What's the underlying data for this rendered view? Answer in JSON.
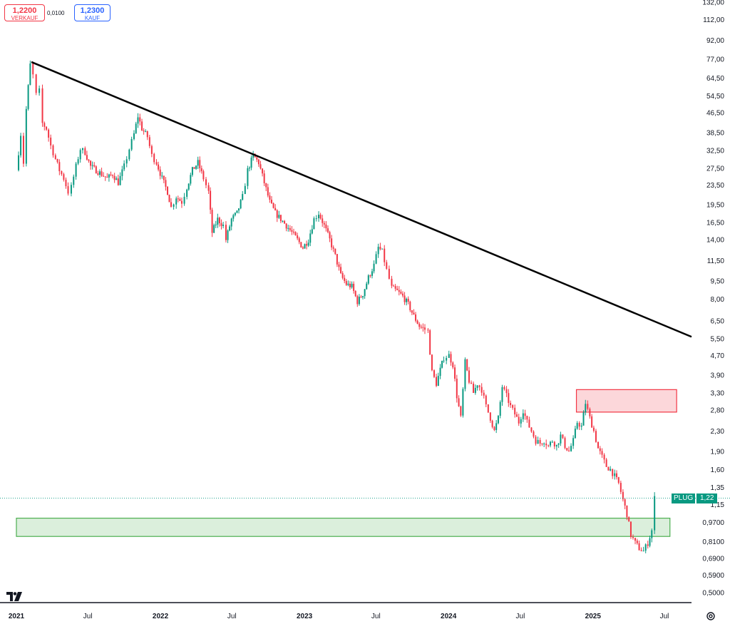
{
  "quote": {
    "sell_price": "1,2200",
    "sell_label": "VERKAUF",
    "spread": "0,0100",
    "buy_price": "1,2300",
    "buy_label": "KAUF"
  },
  "ticker": "PLUG",
  "last_price": "1,22",
  "colors": {
    "up": "#089981",
    "down": "#f23645",
    "trendline": "#000000",
    "resistance_zone": "#f23645",
    "support_zone": "#4caf50",
    "price_line": "#089981"
  },
  "icons": {
    "logo": "tradingview-logo-icon",
    "settings": "gear-icon"
  },
  "chart_data": {
    "type": "line",
    "title": "",
    "xlabel": "",
    "ylabel": "",
    "scale": "log",
    "x_range": [
      "2021-01-01",
      "2025-08-01"
    ],
    "y_range": [
      0.45,
      145
    ],
    "y_ticks": [
      "132,00",
      "112,00",
      "92,00",
      "77,00",
      "64,50",
      "54,50",
      "46,50",
      "38,50",
      "32,50",
      "27,50",
      "23,50",
      "19,50",
      "16,50",
      "14,00",
      "11,50",
      "9,50",
      "8,00",
      "6,50",
      "5,50",
      "4,70",
      "3,90",
      "3,30",
      "2,80",
      "2,30",
      "1,90",
      "1,60",
      "1,35",
      "1,15",
      "0,9700",
      "0,8100",
      "0,6900",
      "0,5900",
      "0,5000"
    ],
    "y_tick_values": [
      132,
      112,
      92,
      77,
      64.5,
      54.5,
      46.5,
      38.5,
      32.5,
      27.5,
      23.5,
      19.5,
      16.5,
      14,
      11.5,
      9.5,
      8,
      6.5,
      5.5,
      4.7,
      3.9,
      3.3,
      2.8,
      2.3,
      1.9,
      1.6,
      1.35,
      1.15,
      0.97,
      0.81,
      0.69,
      0.59,
      0.5
    ],
    "x_ticks": [
      {
        "label": "2021",
        "date": "2021-01-01",
        "year": true
      },
      {
        "label": "Jul",
        "date": "2021-07-01",
        "year": false
      },
      {
        "label": "2022",
        "date": "2022-01-01",
        "year": true
      },
      {
        "label": "Jul",
        "date": "2022-07-01",
        "year": false
      },
      {
        "label": "2023",
        "date": "2023-01-01",
        "year": true
      },
      {
        "label": "Jul",
        "date": "2023-07-01",
        "year": false
      },
      {
        "label": "2024",
        "date": "2024-01-01",
        "year": true
      },
      {
        "label": "Jul",
        "date": "2024-07-01",
        "year": false
      },
      {
        "label": "2025",
        "date": "2025-01-01",
        "year": true
      },
      {
        "label": "Jul",
        "date": "2025-07-01",
        "year": false
      }
    ],
    "series": [
      {
        "values": [
          [
            "2021-01-01",
            27
          ],
          [
            "2021-01-12",
            38
          ],
          [
            "2021-01-19",
            29
          ],
          [
            "2021-01-26",
            48
          ],
          [
            "2021-02-05",
            73
          ],
          [
            "2021-02-12",
            66
          ],
          [
            "2021-02-20",
            55
          ],
          [
            "2021-02-28",
            57
          ],
          [
            "2021-03-08",
            42
          ],
          [
            "2021-03-18",
            40
          ],
          [
            "2021-03-29",
            34
          ],
          [
            "2021-04-10",
            30
          ],
          [
            "2021-04-20",
            27
          ],
          [
            "2021-05-01",
            25
          ],
          [
            "2021-05-12",
            22
          ],
          [
            "2021-05-20",
            23
          ],
          [
            "2021-06-01",
            28
          ],
          [
            "2021-06-12",
            33
          ],
          [
            "2021-06-24",
            32
          ],
          [
            "2021-07-08",
            28
          ],
          [
            "2021-07-22",
            27
          ],
          [
            "2021-08-05",
            26
          ],
          [
            "2021-08-19",
            25
          ],
          [
            "2021-09-02",
            26
          ],
          [
            "2021-09-16",
            24
          ],
          [
            "2021-10-01",
            28
          ],
          [
            "2021-10-14",
            33
          ],
          [
            "2021-10-26",
            38
          ],
          [
            "2021-11-05",
            45
          ],
          [
            "2021-11-15",
            40
          ],
          [
            "2021-11-29",
            37
          ],
          [
            "2021-12-10",
            31
          ],
          [
            "2021-12-22",
            29
          ],
          [
            "2022-01-05",
            25
          ],
          [
            "2022-01-19",
            22
          ],
          [
            "2022-01-28",
            19
          ],
          [
            "2022-02-10",
            21
          ],
          [
            "2022-02-24",
            20
          ],
          [
            "2022-03-09",
            23
          ],
          [
            "2022-03-23",
            27
          ],
          [
            "2022-04-06",
            29
          ],
          [
            "2022-04-20",
            25
          ],
          [
            "2022-05-03",
            22
          ],
          [
            "2022-05-12",
            15
          ],
          [
            "2022-05-26",
            17
          ],
          [
            "2022-06-09",
            16
          ],
          [
            "2022-06-16",
            14
          ],
          [
            "2022-06-30",
            17
          ],
          [
            "2022-07-14",
            18
          ],
          [
            "2022-07-28",
            21
          ],
          [
            "2022-08-10",
            27
          ],
          [
            "2022-08-24",
            31
          ],
          [
            "2022-09-07",
            29
          ],
          [
            "2022-09-21",
            24
          ],
          [
            "2022-10-05",
            20
          ],
          [
            "2022-10-19",
            18
          ],
          [
            "2022-11-02",
            17
          ],
          [
            "2022-11-16",
            16
          ],
          [
            "2022-11-30",
            15
          ],
          [
            "2022-12-14",
            14
          ],
          [
            "2022-12-28",
            13
          ],
          [
            "2023-01-11",
            14
          ],
          [
            "2023-01-25",
            17
          ],
          [
            "2023-02-06",
            18
          ],
          [
            "2023-02-20",
            16
          ],
          [
            "2023-03-06",
            14
          ],
          [
            "2023-03-20",
            12
          ],
          [
            "2023-04-03",
            10
          ],
          [
            "2023-04-17",
            9.2
          ],
          [
            "2023-05-01",
            9.0
          ],
          [
            "2023-05-15",
            7.8
          ],
          [
            "2023-05-29",
            8.4
          ],
          [
            "2023-06-12",
            9.8
          ],
          [
            "2023-06-26",
            11.0
          ],
          [
            "2023-07-07",
            13.0
          ],
          [
            "2023-07-17",
            12.5
          ],
          [
            "2023-07-28",
            10.5
          ],
          [
            "2023-08-10",
            8.9
          ],
          [
            "2023-08-24",
            8.6
          ],
          [
            "2023-09-07",
            8.2
          ],
          [
            "2023-09-21",
            7.6
          ],
          [
            "2023-10-05",
            6.8
          ],
          [
            "2023-10-19",
            6.2
          ],
          [
            "2023-11-02",
            6.0
          ],
          [
            "2023-11-10",
            5.9
          ],
          [
            "2023-11-20",
            4.0
          ],
          [
            "2023-12-01",
            3.6
          ],
          [
            "2023-12-11",
            4.1
          ],
          [
            "2023-12-20",
            4.6
          ],
          [
            "2024-01-02",
            4.7
          ],
          [
            "2024-01-12",
            4.3
          ],
          [
            "2024-01-22",
            3.2
          ],
          [
            "2024-02-01",
            2.6
          ],
          [
            "2024-02-12",
            4.4
          ],
          [
            "2024-02-22",
            3.7
          ],
          [
            "2024-03-04",
            3.3
          ],
          [
            "2024-03-14",
            3.6
          ],
          [
            "2024-03-25",
            3.4
          ],
          [
            "2024-04-05",
            2.9
          ],
          [
            "2024-04-16",
            2.6
          ],
          [
            "2024-04-26",
            2.3
          ],
          [
            "2024-05-06",
            2.6
          ],
          [
            "2024-05-16",
            3.5
          ],
          [
            "2024-05-27",
            3.2
          ],
          [
            "2024-06-06",
            2.9
          ],
          [
            "2024-06-17",
            2.7
          ],
          [
            "2024-06-27",
            2.5
          ],
          [
            "2024-07-08",
            2.8
          ],
          [
            "2024-07-18",
            2.5
          ],
          [
            "2024-07-29",
            2.3
          ],
          [
            "2024-08-09",
            2.1
          ],
          [
            "2024-08-20",
            2.05
          ],
          [
            "2024-08-30",
            2.1
          ],
          [
            "2024-09-10",
            2.0
          ],
          [
            "2024-09-20",
            2.1
          ],
          [
            "2024-10-01",
            2.0
          ],
          [
            "2024-10-11",
            2.2
          ],
          [
            "2024-10-22",
            2.0
          ],
          [
            "2024-11-01",
            1.9
          ],
          [
            "2024-11-12",
            2.1
          ],
          [
            "2024-11-22",
            2.5
          ],
          [
            "2024-12-03",
            2.4
          ],
          [
            "2024-12-13",
            3.0
          ],
          [
            "2024-12-24",
            2.6
          ],
          [
            "2025-01-03",
            2.3
          ],
          [
            "2025-01-14",
            1.95
          ],
          [
            "2025-01-24",
            1.8
          ],
          [
            "2025-02-04",
            1.65
          ],
          [
            "2025-02-14",
            1.6
          ],
          [
            "2025-02-25",
            1.5
          ],
          [
            "2025-03-07",
            1.4
          ],
          [
            "2025-03-18",
            1.2
          ],
          [
            "2025-03-28",
            1.05
          ],
          [
            "2025-04-07",
            0.86
          ],
          [
            "2025-04-18",
            0.8
          ],
          [
            "2025-04-28",
            0.76
          ],
          [
            "2025-05-09",
            0.74
          ],
          [
            "2025-05-20",
            0.8
          ],
          [
            "2025-05-30",
            0.9
          ],
          [
            "2025-06-06",
            1.22
          ]
        ]
      }
    ],
    "trendline": {
      "from": [
        "2021-02-08",
        75
      ],
      "to": [
        "2025-08-01",
        5.6
      ]
    },
    "zones": [
      {
        "name": "resistance",
        "x0": "2024-11-20",
        "x1": "2025-08-01",
        "y0": 2.75,
        "y1": 3.4
      },
      {
        "name": "support",
        "x0": "2021-01-01",
        "x1": "2025-07-15",
        "y0": 0.85,
        "y1": 1.01
      }
    ],
    "last_price": 1.22,
    "grid": false,
    "legend": "none"
  }
}
